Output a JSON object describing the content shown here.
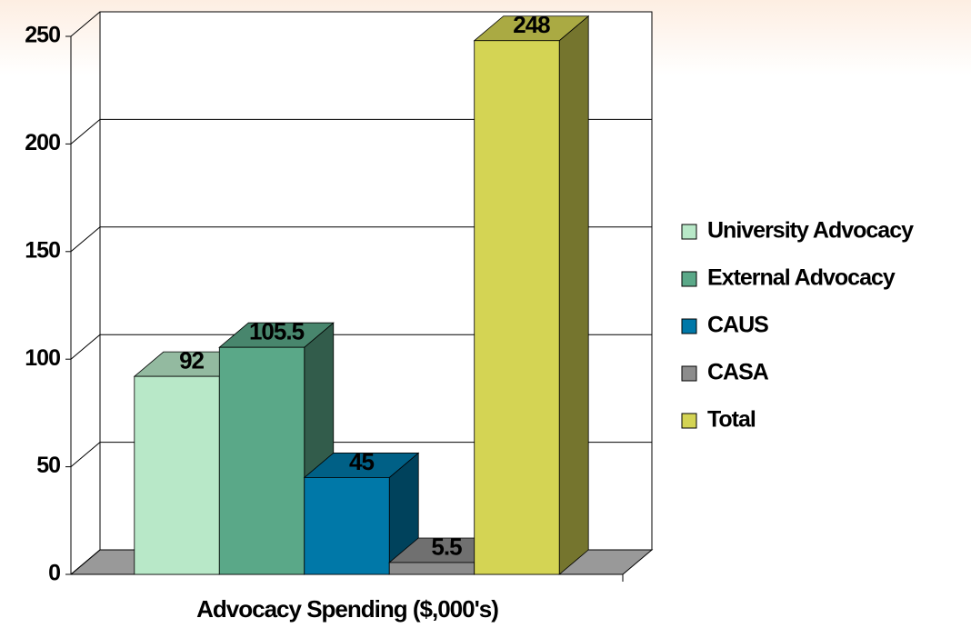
{
  "chart_data": {
    "type": "bar3d",
    "categories": [
      "Advocacy Spending ($,000's)"
    ],
    "series": [
      {
        "name": "University Advocacy",
        "color": "#b8e8c8",
        "values": [
          92
        ]
      },
      {
        "name": "External Advocacy",
        "color": "#5aa888",
        "values": [
          105.5
        ]
      },
      {
        "name": "CAUS",
        "color": "#0078a8",
        "values": [
          45
        ]
      },
      {
        "name": "CASA",
        "color": "#8c8c8c",
        "values": [
          5.5
        ]
      },
      {
        "name": "Total",
        "color": "#d4d454",
        "values": [
          248
        ]
      }
    ],
    "ylim": [
      0,
      250
    ],
    "yticks": [
      0,
      50,
      100,
      150,
      200,
      250
    ],
    "grid": true,
    "legend": "right"
  }
}
